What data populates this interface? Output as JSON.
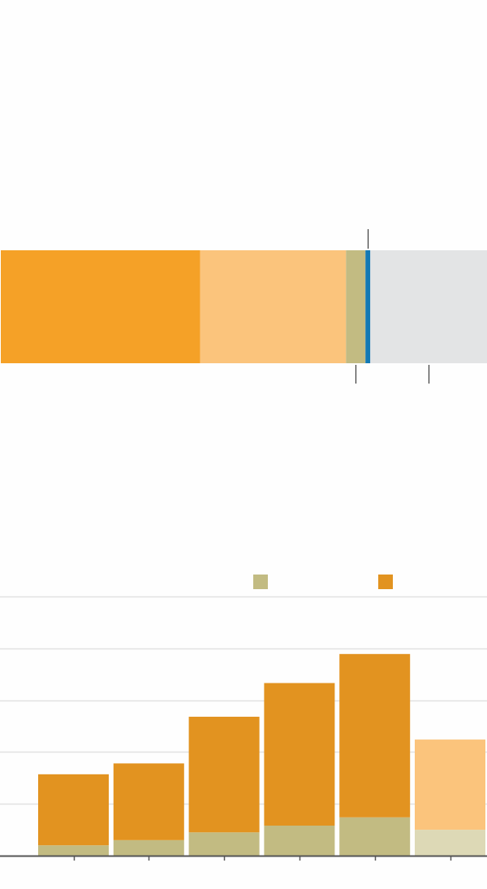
{
  "colors": {
    "background": "#fefefe",
    "grid": "#e2e2e2",
    "axis": "#555555",
    "tick": "#555555",
    "orange": "#f5a127",
    "light_orange": "#fbc47c",
    "olive": "#c2bb82",
    "blue": "#1279b4",
    "gray": "#e3e4e5",
    "bar_orange": "#e29320",
    "bar_olive": "#c2bb82",
    "bar_projected_orange": "#fbc47c",
    "bar_projected_olive": "#ddd9b6",
    "pointer_line": "#222222"
  },
  "chart_data": [
    {
      "type": "bar",
      "orientation": "horizontal-stacked",
      "title": "",
      "xlim": [
        0,
        100
      ],
      "segments": [
        {
          "value": 41,
          "color": "#f5a127"
        },
        {
          "value": 30,
          "color": "#fbc47c"
        },
        {
          "value": 4,
          "color": "#c2bb82"
        },
        {
          "value": 1,
          "color": "#1279b4"
        },
        {
          "value": 24,
          "color": "#e3e4e5"
        }
      ],
      "pointers": [
        {
          "at": 75.5,
          "side": "top"
        },
        {
          "at": 73,
          "side": "bottom"
        },
        {
          "at": 88,
          "side": "bottom"
        }
      ]
    },
    {
      "type": "bar",
      "orientation": "vertical-stacked",
      "title": "",
      "xlabel": "",
      "ylabel": "",
      "ylim": [
        0,
        5
      ],
      "grid": true,
      "gridlines": [
        1,
        2,
        3,
        4,
        5
      ],
      "categories": [
        "",
        "",
        "",
        "",
        "",
        ""
      ],
      "legend": {
        "placement": "top-right",
        "entries": [
          {
            "color": "#c2bb82",
            "label": ""
          },
          {
            "color": "#e29320",
            "label": ""
          }
        ]
      },
      "series": [
        {
          "values": [
            0.2,
            0.3,
            0.45,
            0.58,
            0.74,
            0.5
          ],
          "colors": [
            "#c2bb82",
            "#c2bb82",
            "#c2bb82",
            "#c2bb82",
            "#c2bb82",
            "#ddd9b6"
          ]
        },
        {
          "values": [
            1.37,
            1.48,
            2.23,
            2.75,
            3.15,
            1.74
          ],
          "colors": [
            "#e29320",
            "#e29320",
            "#e29320",
            "#e29320",
            "#e29320",
            "#fbc47c"
          ]
        }
      ]
    }
  ]
}
